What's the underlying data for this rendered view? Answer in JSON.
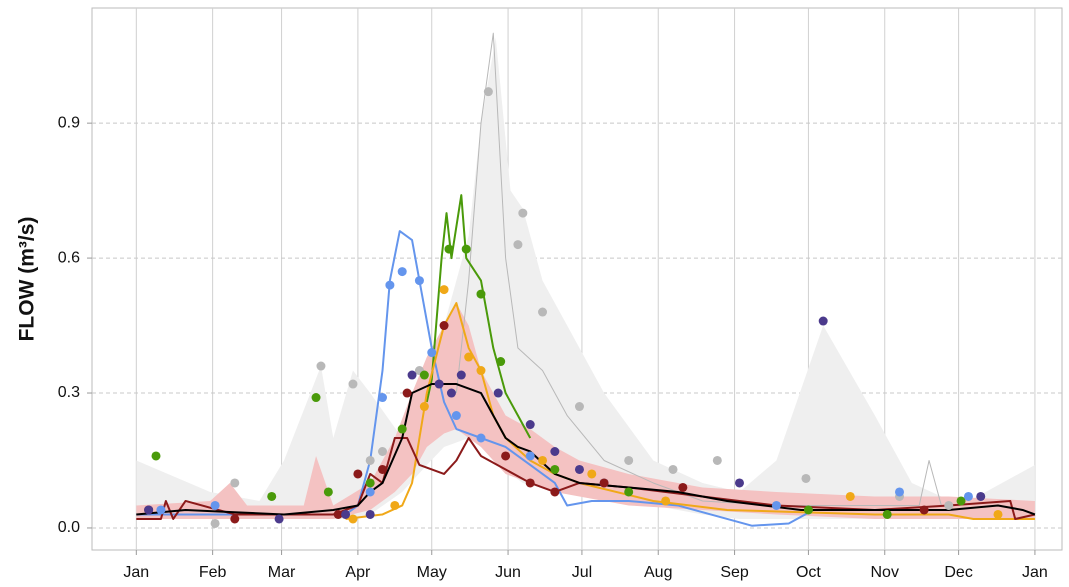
{
  "chart_data": {
    "type": "line",
    "y_label": "FLOW (m³/s)",
    "xlim": [
      -18,
      376
    ],
    "ylim": [
      -0.049,
      1.156
    ],
    "xticks": [
      {
        "value": 0,
        "label": "Jan"
      },
      {
        "value": 31,
        "label": "Feb"
      },
      {
        "value": 59,
        "label": "Mar"
      },
      {
        "value": 90,
        "label": "Apr"
      },
      {
        "value": 120,
        "label": "May"
      },
      {
        "value": 151,
        "label": "Jun"
      },
      {
        "value": 181,
        "label": "Jul"
      },
      {
        "value": 212,
        "label": "Aug"
      },
      {
        "value": 243,
        "label": "Sep"
      },
      {
        "value": 273,
        "label": "Oct"
      },
      {
        "value": 304,
        "label": "Nov"
      },
      {
        "value": 334,
        "label": "Dec"
      },
      {
        "value": 365,
        "label": "Jan"
      }
    ],
    "yticks": [
      {
        "value": 0,
        "label": "0.0"
      },
      0.3,
      0.6,
      0.9
    ],
    "grid": true,
    "series": [
      {
        "kind": "band",
        "color": "#efefef",
        "x": [
          0,
          30,
          50,
          60,
          75,
          80,
          88,
          95,
          108,
          118,
          125,
          135,
          140,
          146,
          152,
          157,
          165,
          175,
          190,
          210,
          230,
          245,
          260,
          279,
          300,
          315,
          335,
          365
        ],
        "lower": [
          0.02,
          0.02,
          0.02,
          0.02,
          0.02,
          0.02,
          0.02,
          0.03,
          0.08,
          0.14,
          0.18,
          0.2,
          0.18,
          0.15,
          0.12,
          0.1,
          0.09,
          0.08,
          0.07,
          0.05,
          0.03,
          0.02,
          0.02,
          0.02,
          0.02,
          0.02,
          0.02,
          0.02
        ],
        "upper": [
          0.15,
          0.08,
          0.06,
          0.15,
          0.36,
          0.2,
          0.35,
          0.3,
          0.2,
          0.35,
          0.45,
          0.65,
          0.9,
          1.09,
          0.75,
          0.71,
          0.55,
          0.45,
          0.3,
          0.15,
          0.1,
          0.08,
          0.15,
          0.45,
          0.25,
          0.1,
          0.05,
          0.14
        ]
      },
      {
        "kind": "band",
        "color": "#f4c2c2",
        "x": [
          0,
          30,
          38,
          45,
          68,
          73,
          80,
          95,
          105,
          112,
          118,
          125,
          130,
          135,
          140,
          150,
          160,
          170,
          180,
          200,
          230,
          260,
          300,
          330,
          365
        ],
        "lower": [
          0.02,
          0.02,
          0.02,
          0.02,
          0.02,
          0.02,
          0.02,
          0.04,
          0.08,
          0.12,
          0.18,
          0.21,
          0.22,
          0.2,
          0.18,
          0.12,
          0.1,
          0.08,
          0.07,
          0.05,
          0.04,
          0.03,
          0.02,
          0.02,
          0.02
        ],
        "upper": [
          0.05,
          0.06,
          0.1,
          0.05,
          0.05,
          0.16,
          0.05,
          0.1,
          0.2,
          0.3,
          0.38,
          0.45,
          0.5,
          0.45,
          0.35,
          0.25,
          0.22,
          0.18,
          0.15,
          0.12,
          0.09,
          0.08,
          0.07,
          0.07,
          0.06
        ]
      },
      {
        "kind": "line",
        "color": "#b8b8b8",
        "width": 1,
        "x": [
          130,
          135,
          140,
          145,
          150,
          155,
          165,
          175,
          190,
          210,
          230,
          260,
          300,
          318,
          322,
          327
        ],
        "values": [
          0.3,
          0.55,
          0.9,
          1.1,
          0.6,
          0.4,
          0.35,
          0.25,
          0.15,
          0.1,
          0.06,
          0.05,
          0.05,
          0.05,
          0.15,
          0.05
        ]
      },
      {
        "kind": "line",
        "color": "#6495ed",
        "width": 2,
        "x": [
          0,
          30,
          60,
          85,
          90,
          95,
          100,
          103,
          107,
          112,
          115,
          120,
          125,
          130,
          140,
          150,
          160,
          170,
          175,
          185,
          200,
          220,
          240,
          250,
          265,
          275
        ],
        "values": [
          0.03,
          0.03,
          0.03,
          0.03,
          0.05,
          0.15,
          0.35,
          0.55,
          0.66,
          0.64,
          0.55,
          0.4,
          0.28,
          0.22,
          0.2,
          0.18,
          0.14,
          0.1,
          0.05,
          0.06,
          0.06,
          0.05,
          0.02,
          0.005,
          0.01,
          0.04
        ]
      },
      {
        "kind": "line",
        "color": "#4a9a0a",
        "width": 2,
        "x": [
          118,
          120,
          124,
          126,
          128,
          132,
          134,
          140,
          145,
          150,
          155,
          160
        ],
        "values": [
          0.28,
          0.33,
          0.6,
          0.7,
          0.6,
          0.74,
          0.6,
          0.55,
          0.4,
          0.3,
          0.25,
          0.2
        ]
      },
      {
        "kind": "line",
        "color": "#f0a818",
        "width": 2,
        "x": [
          85,
          100,
          108,
          112,
          118,
          125,
          130,
          135,
          140,
          145,
          150,
          160,
          170,
          180,
          210,
          240,
          300,
          330,
          340,
          365
        ],
        "values": [
          0.02,
          0.03,
          0.05,
          0.1,
          0.3,
          0.45,
          0.5,
          0.4,
          0.35,
          0.25,
          0.2,
          0.15,
          0.12,
          0.1,
          0.06,
          0.04,
          0.03,
          0.03,
          0.02,
          0.02
        ]
      },
      {
        "kind": "line",
        "color": "#8b1a1a",
        "width": 2,
        "x": [
          0,
          10,
          12,
          15,
          20,
          40,
          80,
          90,
          95,
          100,
          105,
          110,
          115,
          120,
          125,
          130,
          135,
          140,
          150,
          160,
          170,
          180,
          200,
          230,
          260,
          300,
          330,
          355,
          357,
          365
        ],
        "values": [
          0.02,
          0.02,
          0.06,
          0.02,
          0.06,
          0.03,
          0.03,
          0.05,
          0.12,
          0.1,
          0.2,
          0.2,
          0.14,
          0.13,
          0.12,
          0.15,
          0.2,
          0.16,
          0.13,
          0.1,
          0.08,
          0.1,
          0.09,
          0.07,
          0.05,
          0.04,
          0.05,
          0.06,
          0.02,
          0.03
        ]
      },
      {
        "kind": "line",
        "color": "#000000",
        "width": 2,
        "x": [
          0,
          10,
          20,
          40,
          60,
          80,
          90,
          95,
          100,
          108,
          112,
          120,
          130,
          140,
          145,
          150,
          155,
          160,
          170,
          180,
          200,
          220,
          240,
          270,
          300,
          330,
          350,
          360,
          365
        ],
        "values": [
          0.03,
          0.035,
          0.04,
          0.035,
          0.03,
          0.04,
          0.05,
          0.08,
          0.1,
          0.2,
          0.3,
          0.32,
          0.32,
          0.3,
          0.25,
          0.2,
          0.18,
          0.17,
          0.12,
          0.1,
          0.09,
          0.08,
          0.06,
          0.04,
          0.04,
          0.04,
          0.05,
          0.04,
          0.03
        ]
      },
      {
        "kind": "points",
        "color": "#b8b8b8",
        "x": [
          32,
          40,
          75,
          88,
          95,
          100,
          115,
          143,
          155,
          157,
          165,
          180,
          200,
          218,
          236,
          272,
          310,
          330
        ],
        "values": [
          0.01,
          0.1,
          0.36,
          0.32,
          0.15,
          0.17,
          0.35,
          0.97,
          0.63,
          0.7,
          0.48,
          0.27,
          0.15,
          0.13,
          0.15,
          0.11,
          0.07,
          0.05
        ]
      },
      {
        "kind": "points",
        "color": "#4a9a0a",
        "x": [
          8,
          55,
          73,
          78,
          95,
          108,
          117,
          127,
          134,
          140,
          148,
          170,
          200,
          273,
          305,
          335
        ],
        "values": [
          0.16,
          0.07,
          0.29,
          0.08,
          0.1,
          0.22,
          0.34,
          0.62,
          0.62,
          0.52,
          0.37,
          0.13,
          0.08,
          0.04,
          0.03,
          0.06
        ]
      },
      {
        "kind": "points",
        "color": "#6495ed",
        "x": [
          10,
          32,
          95,
          100,
          103,
          108,
          115,
          120,
          130,
          140,
          160,
          190,
          260,
          310,
          338
        ],
        "values": [
          0.04,
          0.05,
          0.08,
          0.29,
          0.54,
          0.57,
          0.55,
          0.39,
          0.25,
          0.2,
          0.16,
          0.1,
          0.05,
          0.08,
          0.07
        ]
      },
      {
        "kind": "points",
        "color": "#f0a818",
        "x": [
          88,
          105,
          117,
          125,
          135,
          140,
          165,
          185,
          215,
          290,
          350
        ],
        "values": [
          0.02,
          0.05,
          0.27,
          0.53,
          0.38,
          0.35,
          0.15,
          0.12,
          0.06,
          0.07,
          0.03
        ]
      },
      {
        "kind": "points",
        "color": "#8b1a1a",
        "x": [
          5,
          40,
          82,
          90,
          100,
          110,
          125,
          150,
          160,
          170,
          190,
          222,
          320
        ],
        "values": [
          0.04,
          0.02,
          0.03,
          0.12,
          0.13,
          0.3,
          0.45,
          0.16,
          0.1,
          0.08,
          0.1,
          0.09,
          0.04
        ]
      },
      {
        "kind": "points",
        "color": "#4b3a8c",
        "x": [
          5,
          58,
          85,
          95,
          112,
          123,
          128,
          132,
          147,
          160,
          170,
          180,
          245,
          279,
          343
        ],
        "values": [
          0.04,
          0.02,
          0.03,
          0.03,
          0.34,
          0.32,
          0.3,
          0.34,
          0.3,
          0.23,
          0.17,
          0.13,
          0.1,
          0.46,
          0.07
        ]
      }
    ]
  }
}
